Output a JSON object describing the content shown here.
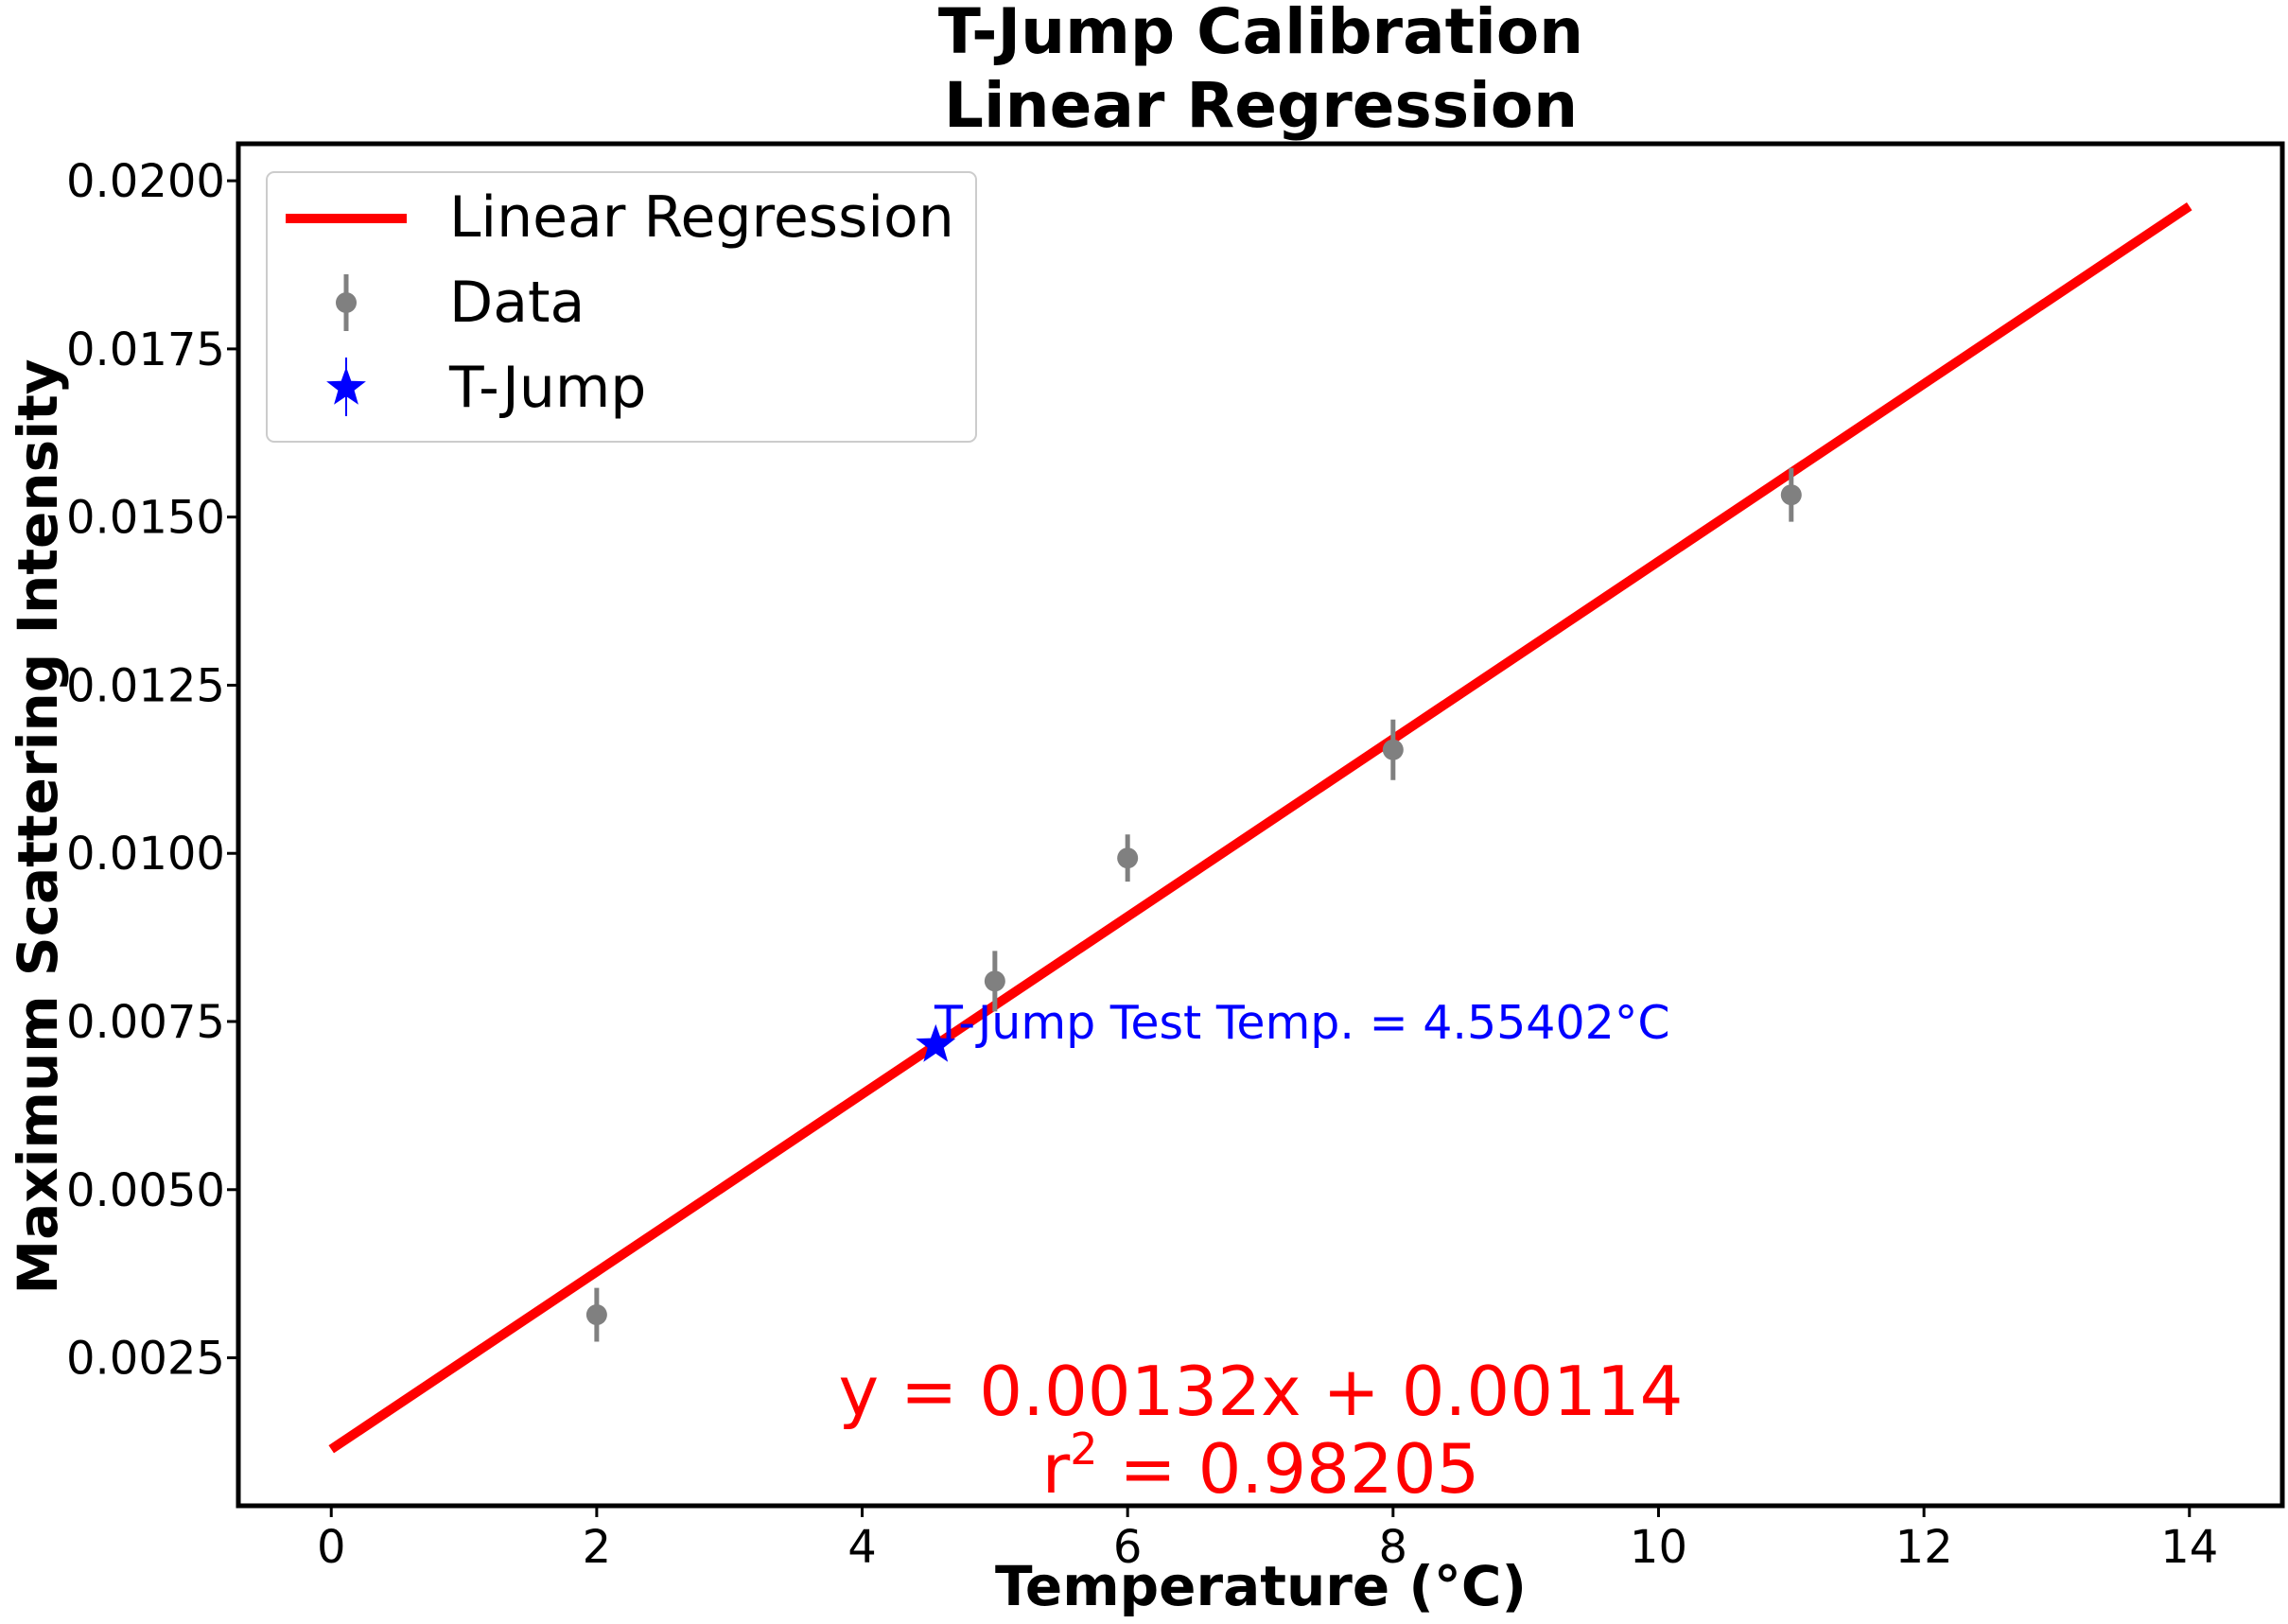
{
  "chart_data": {
    "type": "scatter",
    "title_line1": "T-Jump Calibration",
    "title_line2": "Linear Regression",
    "xlabel": "Temperature (°C)",
    "ylabel": "Maximum Scattering Intensity",
    "xlim": [
      -0.7,
      14.7
    ],
    "ylim": [
      0.0003,
      0.02055
    ],
    "x_ticks": [
      0,
      2,
      4,
      6,
      8,
      10,
      12,
      14
    ],
    "x_tick_labels": [
      "0",
      "2",
      "4",
      "6",
      "8",
      "10",
      "12",
      "14"
    ],
    "y_ticks": [
      0.0025,
      0.005,
      0.0075,
      0.01,
      0.0125,
      0.015,
      0.0175,
      0.02
    ],
    "y_tick_labels": [
      "0.0025",
      "0.0050",
      "0.0075",
      "0.0100",
      "0.0125",
      "0.0150",
      "0.0175",
      "0.0200"
    ],
    "grid": false,
    "legend_position": "upper-left",
    "legend": {
      "regression": "Linear Regression",
      "data": "Data",
      "tjump": "T-Jump"
    },
    "regression": {
      "slope": 0.00132,
      "intercept": 0.00114,
      "x_range": [
        0,
        14
      ],
      "color": "#ff0000"
    },
    "data_points": {
      "color": "#808080",
      "x": [
        2,
        5,
        6,
        8,
        11
      ],
      "y": [
        0.00314,
        0.0081,
        0.00993,
        0.01154,
        0.01533
      ],
      "err": [
        0.0004,
        0.00045,
        0.00035,
        0.00045,
        0.0004
      ]
    },
    "tjump_point": {
      "x": 4.55402,
      "y": 0.00715,
      "color": "#0000ff"
    },
    "annotations": {
      "tjump_label": "T-Jump Test Temp. = 4.55402°C",
      "equation": "y = 0.00132x + 0.00114",
      "r2_prefix": "r",
      "r2_sup": "2",
      "r2_value": " = 0.98205"
    }
  }
}
